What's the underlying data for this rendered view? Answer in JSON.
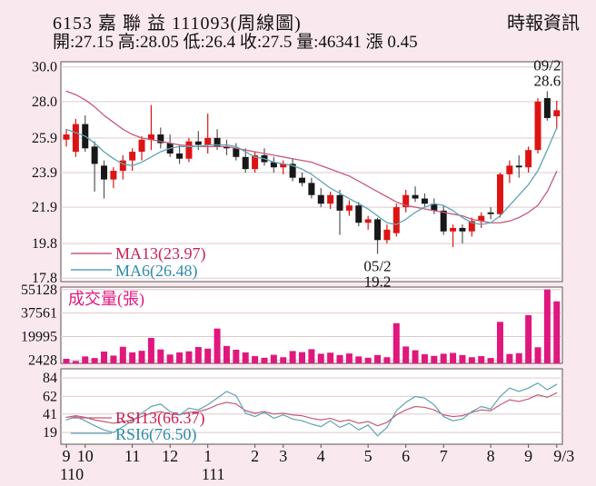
{
  "header": {
    "title": "6153 嘉 聯 益 111093(周線圖)",
    "source": "時報資訊",
    "stats": "開:27.15 高:28.05 低:26.4 收:27.5 量:46341 漲 0.45"
  },
  "colors": {
    "background_pink": "#fae8ef",
    "pane_white": "#ffffff",
    "pane_border": "#5a5552",
    "grid": "#ddc9ce",
    "text_black": "#111111",
    "up_red": "#dd1414",
    "down_black": "#181818",
    "down_wick_gray": "#555555",
    "volume_magenta": "#e0187e",
    "ma13_line": "#c75b77",
    "ma6_line": "#5da4b5",
    "crimson_label": "#cc2155",
    "teal_label": "#2d8ca6"
  },
  "chart_data": [
    {
      "type": "candlestick",
      "title": "6153 嘉聯益 週線圖 (weekly)",
      "ylim": [
        17.6,
        30.3
      ],
      "y_ticks": [
        30.0,
        28.0,
        25.9,
        23.9,
        21.9,
        19.8,
        17.8
      ],
      "legend": [
        {
          "label": "MA13(23.97)",
          "series": "ma13"
        },
        {
          "label": "MA6(26.48)",
          "series": "ma6"
        }
      ],
      "annotations": [
        {
          "lines": [
            "09/2",
            "28.6"
          ],
          "week": 51,
          "price": 28.6,
          "position": "above"
        },
        {
          "lines": [
            "05/2",
            "19.2"
          ],
          "week": 33,
          "price": 19.2,
          "position": "below"
        }
      ],
      "weeks_ohlc": [
        [
          25.8,
          26.4,
          25.4,
          26.1
        ],
        [
          25.1,
          27.0,
          24.8,
          26.7
        ],
        [
          26.7,
          27.2,
          25.1,
          25.3
        ],
        [
          25.4,
          25.7,
          22.8,
          24.4
        ],
        [
          24.3,
          24.6,
          22.4,
          23.5
        ],
        [
          23.5,
          24.2,
          23.0,
          24.0
        ],
        [
          24.0,
          24.9,
          23.5,
          24.6
        ],
        [
          24.6,
          25.3,
          24.0,
          25.1
        ],
        [
          25.1,
          26.0,
          24.6,
          25.8
        ],
        [
          25.8,
          27.8,
          25.2,
          26.1
        ],
        [
          26.1,
          26.5,
          25.3,
          25.6
        ],
        [
          25.6,
          26.1,
          24.8,
          25.0
        ],
        [
          25.0,
          25.5,
          24.4,
          24.7
        ],
        [
          24.7,
          25.9,
          24.5,
          25.7
        ],
        [
          25.7,
          26.3,
          25.2,
          25.5
        ],
        [
          25.5,
          27.3,
          25.0,
          25.9
        ],
        [
          25.9,
          26.4,
          25.2,
          25.4
        ],
        [
          25.4,
          25.8,
          24.9,
          25.3
        ],
        [
          25.3,
          25.6,
          24.6,
          24.8
        ],
        [
          24.8,
          25.3,
          23.9,
          24.1
        ],
        [
          24.1,
          25.1,
          23.9,
          24.9
        ],
        [
          24.9,
          25.3,
          24.3,
          24.5
        ],
        [
          24.5,
          24.8,
          23.9,
          24.2
        ],
        [
          24.2,
          24.6,
          23.8,
          24.4
        ],
        [
          24.4,
          24.7,
          23.4,
          23.6
        ],
        [
          23.6,
          23.9,
          23.1,
          23.3
        ],
        [
          23.3,
          23.6,
          22.4,
          22.6
        ],
        [
          22.6,
          23.0,
          21.9,
          22.1
        ],
        [
          22.1,
          22.8,
          21.8,
          22.6
        ],
        [
          22.6,
          22.9,
          20.3,
          21.7
        ],
        [
          21.7,
          22.3,
          21.4,
          22.0
        ],
        [
          22.0,
          22.2,
          20.8,
          21.0
        ],
        [
          21.0,
          21.4,
          20.6,
          21.2
        ],
        [
          21.2,
          21.3,
          19.2,
          20.0
        ],
        [
          20.0,
          20.9,
          19.8,
          20.6
        ],
        [
          20.4,
          22.1,
          20.2,
          21.9
        ],
        [
          21.9,
          22.9,
          21.6,
          22.6
        ],
        [
          22.6,
          23.1,
          22.2,
          22.4
        ],
        [
          22.4,
          22.7,
          21.9,
          22.1
        ],
        [
          22.1,
          22.4,
          21.5,
          21.7
        ],
        [
          21.7,
          22.0,
          20.3,
          20.5
        ],
        [
          20.5,
          20.9,
          19.6,
          20.7
        ],
        [
          20.7,
          20.9,
          19.8,
          20.5
        ],
        [
          20.5,
          21.3,
          20.2,
          21.1
        ],
        [
          21.1,
          21.6,
          20.7,
          21.4
        ],
        [
          21.6,
          21.9,
          21.2,
          21.5
        ],
        [
          21.5,
          23.9,
          21.3,
          23.8
        ],
        [
          23.8,
          24.6,
          23.3,
          24.3
        ],
        [
          24.3,
          24.9,
          23.6,
          24.2
        ],
        [
          24.2,
          25.4,
          23.9,
          25.2
        ],
        [
          25.2,
          28.2,
          25.0,
          28.0
        ],
        [
          28.2,
          28.6,
          26.9,
          27.05
        ],
        [
          27.15,
          28.05,
          26.4,
          27.5
        ]
      ],
      "ma13": [
        28.6,
        28.4,
        28.1,
        27.7,
        27.2,
        26.8,
        26.4,
        26.1,
        25.9,
        25.8,
        25.7,
        25.6,
        25.5,
        25.45,
        25.4,
        25.4,
        25.4,
        25.4,
        25.3,
        25.2,
        25.1,
        25.0,
        24.9,
        24.8,
        24.7,
        24.6,
        24.5,
        24.3,
        24.1,
        23.9,
        23.7,
        23.4,
        23.1,
        22.8,
        22.5,
        22.2,
        22.0,
        21.9,
        21.8,
        21.7,
        21.6,
        21.5,
        21.4,
        21.2,
        21.1,
        21.0,
        21.0,
        21.1,
        21.3,
        21.6,
        22.0,
        22.8,
        23.97
      ],
      "ma6": [
        26.4,
        26.2,
        26.0,
        25.6,
        25.1,
        24.7,
        24.4,
        24.3,
        24.5,
        24.8,
        25.1,
        25.3,
        25.4,
        25.4,
        25.4,
        25.5,
        25.5,
        25.5,
        25.4,
        25.1,
        24.8,
        24.7,
        24.5,
        24.4,
        24.3,
        24.1,
        23.8,
        23.4,
        23.0,
        22.7,
        22.4,
        22.1,
        21.8,
        21.4,
        21.0,
        20.9,
        21.2,
        21.6,
        21.9,
        22.1,
        22.0,
        21.7,
        21.3,
        21.0,
        20.9,
        21.0,
        21.4,
        22.0,
        22.6,
        23.2,
        24.0,
        25.2,
        26.48
      ],
      "x_axis": {
        "months": [
          {
            "label": "9",
            "week": 0
          },
          {
            "label": "10",
            "week": 2
          },
          {
            "label": "11",
            "week": 7
          },
          {
            "label": "12",
            "week": 11
          },
          {
            "label": "1",
            "week": 15
          },
          {
            "label": "2",
            "week": 20
          },
          {
            "label": "3",
            "week": 23
          },
          {
            "label": "4",
            "week": 27
          },
          {
            "label": "5",
            "week": 32
          },
          {
            "label": "6",
            "week": 36
          },
          {
            "label": "7",
            "week": 40
          },
          {
            "label": "8",
            "week": 45
          },
          {
            "label": "9",
            "week": 49
          },
          {
            "label": "9/3",
            "week": 52
          }
        ],
        "years": [
          {
            "label": "110",
            "week": 0
          },
          {
            "label": "111",
            "week": 15
          }
        ]
      }
    },
    {
      "type": "bar",
      "title": "成交量(張)",
      "ylim": [
        0,
        57000
      ],
      "y_ticks": [
        55128,
        37561,
        19995,
        2428
      ],
      "values": [
        3400,
        1800,
        5200,
        4000,
        8800,
        5800,
        12400,
        8200,
        9400,
        19000,
        10400,
        6600,
        8200,
        9000,
        12200,
        11000,
        26000,
        13000,
        10200,
        8200,
        5400,
        4200,
        6400,
        4600,
        9200,
        8400,
        10600,
        7200,
        8000,
        6200,
        7400,
        5200,
        4200,
        6200,
        4600,
        30000,
        12600,
        9800,
        6800,
        5600,
        7200,
        7800,
        6200,
        4600,
        5400,
        4000,
        31000,
        7000,
        7600,
        36000,
        12000,
        55128,
        46341
      ]
    },
    {
      "type": "line",
      "title": "RSI",
      "ylim": [
        5,
        95
      ],
      "y_ticks": [
        84,
        62,
        41,
        19
      ],
      "series": [
        {
          "name": "RSI13(66.37)",
          "color_key": "crimson",
          "values": [
            37,
            39,
            37,
            34,
            32,
            30,
            32,
            34,
            38,
            42,
            44,
            41,
            40,
            43,
            44,
            47,
            52,
            55,
            53,
            45,
            42,
            44,
            41,
            42,
            40,
            39,
            36,
            34,
            36,
            32,
            34,
            30,
            32,
            27,
            31,
            40,
            46,
            50,
            49,
            46,
            40,
            38,
            39,
            43,
            46,
            45,
            52,
            58,
            56,
            59,
            64,
            61,
            66.37
          ]
        },
        {
          "name": "RSI6(76.50)",
          "color_key": "teal",
          "values": [
            34,
            38,
            33,
            27,
            22,
            19,
            26,
            33,
            42,
            50,
            53,
            44,
            40,
            48,
            46,
            52,
            60,
            68,
            63,
            42,
            38,
            43,
            36,
            40,
            35,
            33,
            29,
            26,
            33,
            25,
            30,
            22,
            28,
            15,
            25,
            45,
            55,
            62,
            60,
            52,
            38,
            33,
            35,
            44,
            50,
            47,
            62,
            72,
            68,
            72,
            78,
            70,
            76.5
          ]
        }
      ]
    }
  ]
}
